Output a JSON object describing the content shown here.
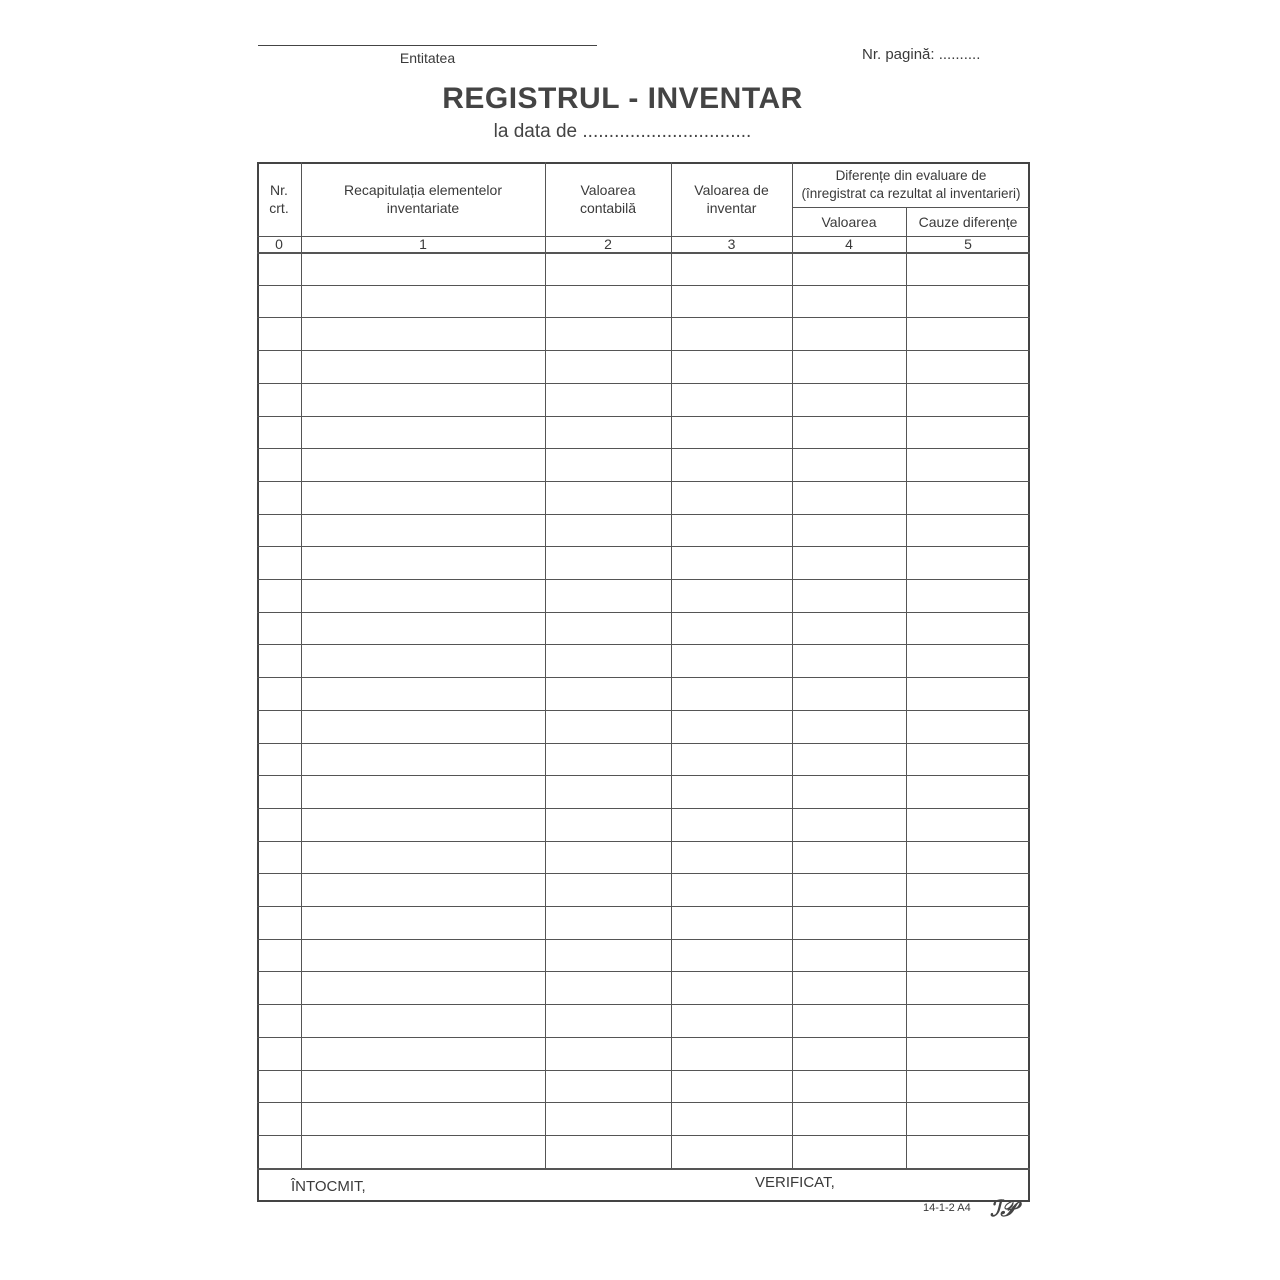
{
  "header": {
    "entity_label": "Entitatea",
    "page_number_label": "Nr. pagină: ..........",
    "title": "REGISTRUL - INVENTAR",
    "subtitle": "la data de ................................"
  },
  "table": {
    "columns": [
      {
        "label": "Nr.\ncrt.",
        "number": "0"
      },
      {
        "label": "Recapitulația elementelor\ninventariate",
        "number": "1"
      },
      {
        "label": "Valoarea\ncontabilă",
        "number": "2"
      },
      {
        "label": "Valoarea de\ninventar",
        "number": "3"
      },
      {
        "label": "Valoarea",
        "number": "4"
      },
      {
        "label": "Cauze diferențe",
        "number": "5"
      }
    ],
    "group_header": "Diferențe din evaluare de\n(înregistrat ca rezultat al inventarieri)"
  },
  "footer": {
    "prepared_label": "ÎNTOCMIT,",
    "verified_label": "VERIFICAT,",
    "form_code": "14-1-2  A4",
    "logo_text": "TP"
  }
}
